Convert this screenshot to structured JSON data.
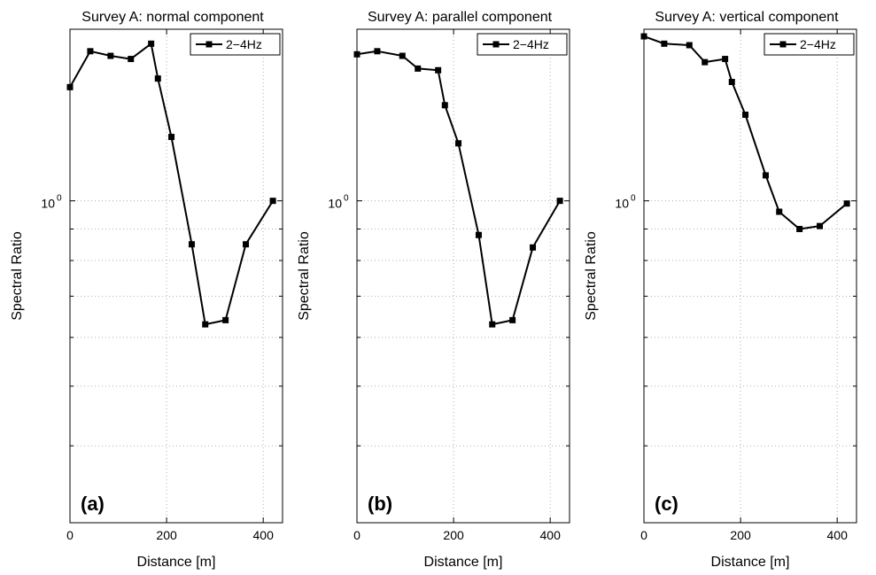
{
  "colors": {
    "line": "#000000",
    "grid": "#b0b0b0",
    "background": "#ffffff"
  },
  "chart_data": [
    {
      "type": "line",
      "title": "Survey A: normal component",
      "xlabel": "Distance [m]",
      "ylabel": "Spectral Ratio",
      "panel_tag": "(a)",
      "y_scale": "log",
      "x_ticks": [
        "0",
        "200",
        "400"
      ],
      "y_tick_label": "10",
      "y_tick_exp": "0",
      "xlim": [
        0,
        440
      ],
      "ylim": [
        0.3,
        1.9
      ],
      "grid": true,
      "legend_position": "top-right",
      "series": [
        {
          "name": "2−4Hz",
          "x": [
            0,
            42,
            84,
            126,
            168,
            182,
            210,
            252,
            280,
            322,
            364,
            420
          ],
          "y": [
            1.53,
            1.75,
            1.72,
            1.7,
            1.8,
            1.58,
            1.27,
            0.85,
            0.63,
            0.64,
            0.85,
            1.0
          ]
        }
      ]
    },
    {
      "type": "line",
      "title": "Survey A: parallel component",
      "xlabel": "Distance [m]",
      "ylabel": "Spectral Ratio",
      "panel_tag": "(b)",
      "y_scale": "log",
      "x_ticks": [
        "0",
        "200",
        "400"
      ],
      "y_tick_label": "10",
      "y_tick_exp": "0",
      "xlim": [
        0,
        440
      ],
      "ylim": [
        0.3,
        1.9
      ],
      "grid": true,
      "legend_position": "top-right",
      "series": [
        {
          "name": "2−4Hz",
          "x": [
            0,
            42,
            94,
            126,
            168,
            182,
            210,
            252,
            280,
            322,
            364,
            420
          ],
          "y": [
            1.73,
            1.75,
            1.72,
            1.64,
            1.63,
            1.43,
            1.24,
            0.88,
            0.63,
            0.64,
            0.84,
            1.0
          ]
        }
      ]
    },
    {
      "type": "line",
      "title": "Survey A: vertical component",
      "xlabel": "Distance [m]",
      "ylabel": "Spectral Ratio",
      "panel_tag": "(c)",
      "y_scale": "log",
      "x_ticks": [
        "0",
        "200",
        "400"
      ],
      "y_tick_label": "10",
      "y_tick_exp": "0",
      "xlim": [
        0,
        440
      ],
      "ylim": [
        0.3,
        1.9
      ],
      "grid": true,
      "legend_position": "top-right",
      "series": [
        {
          "name": "2−4Hz",
          "x": [
            0,
            42,
            94,
            126,
            168,
            182,
            210,
            252,
            280,
            322,
            364,
            420
          ],
          "y": [
            1.85,
            1.8,
            1.79,
            1.68,
            1.7,
            1.56,
            1.38,
            1.1,
            0.96,
            0.9,
            0.91,
            0.99
          ]
        }
      ]
    }
  ]
}
